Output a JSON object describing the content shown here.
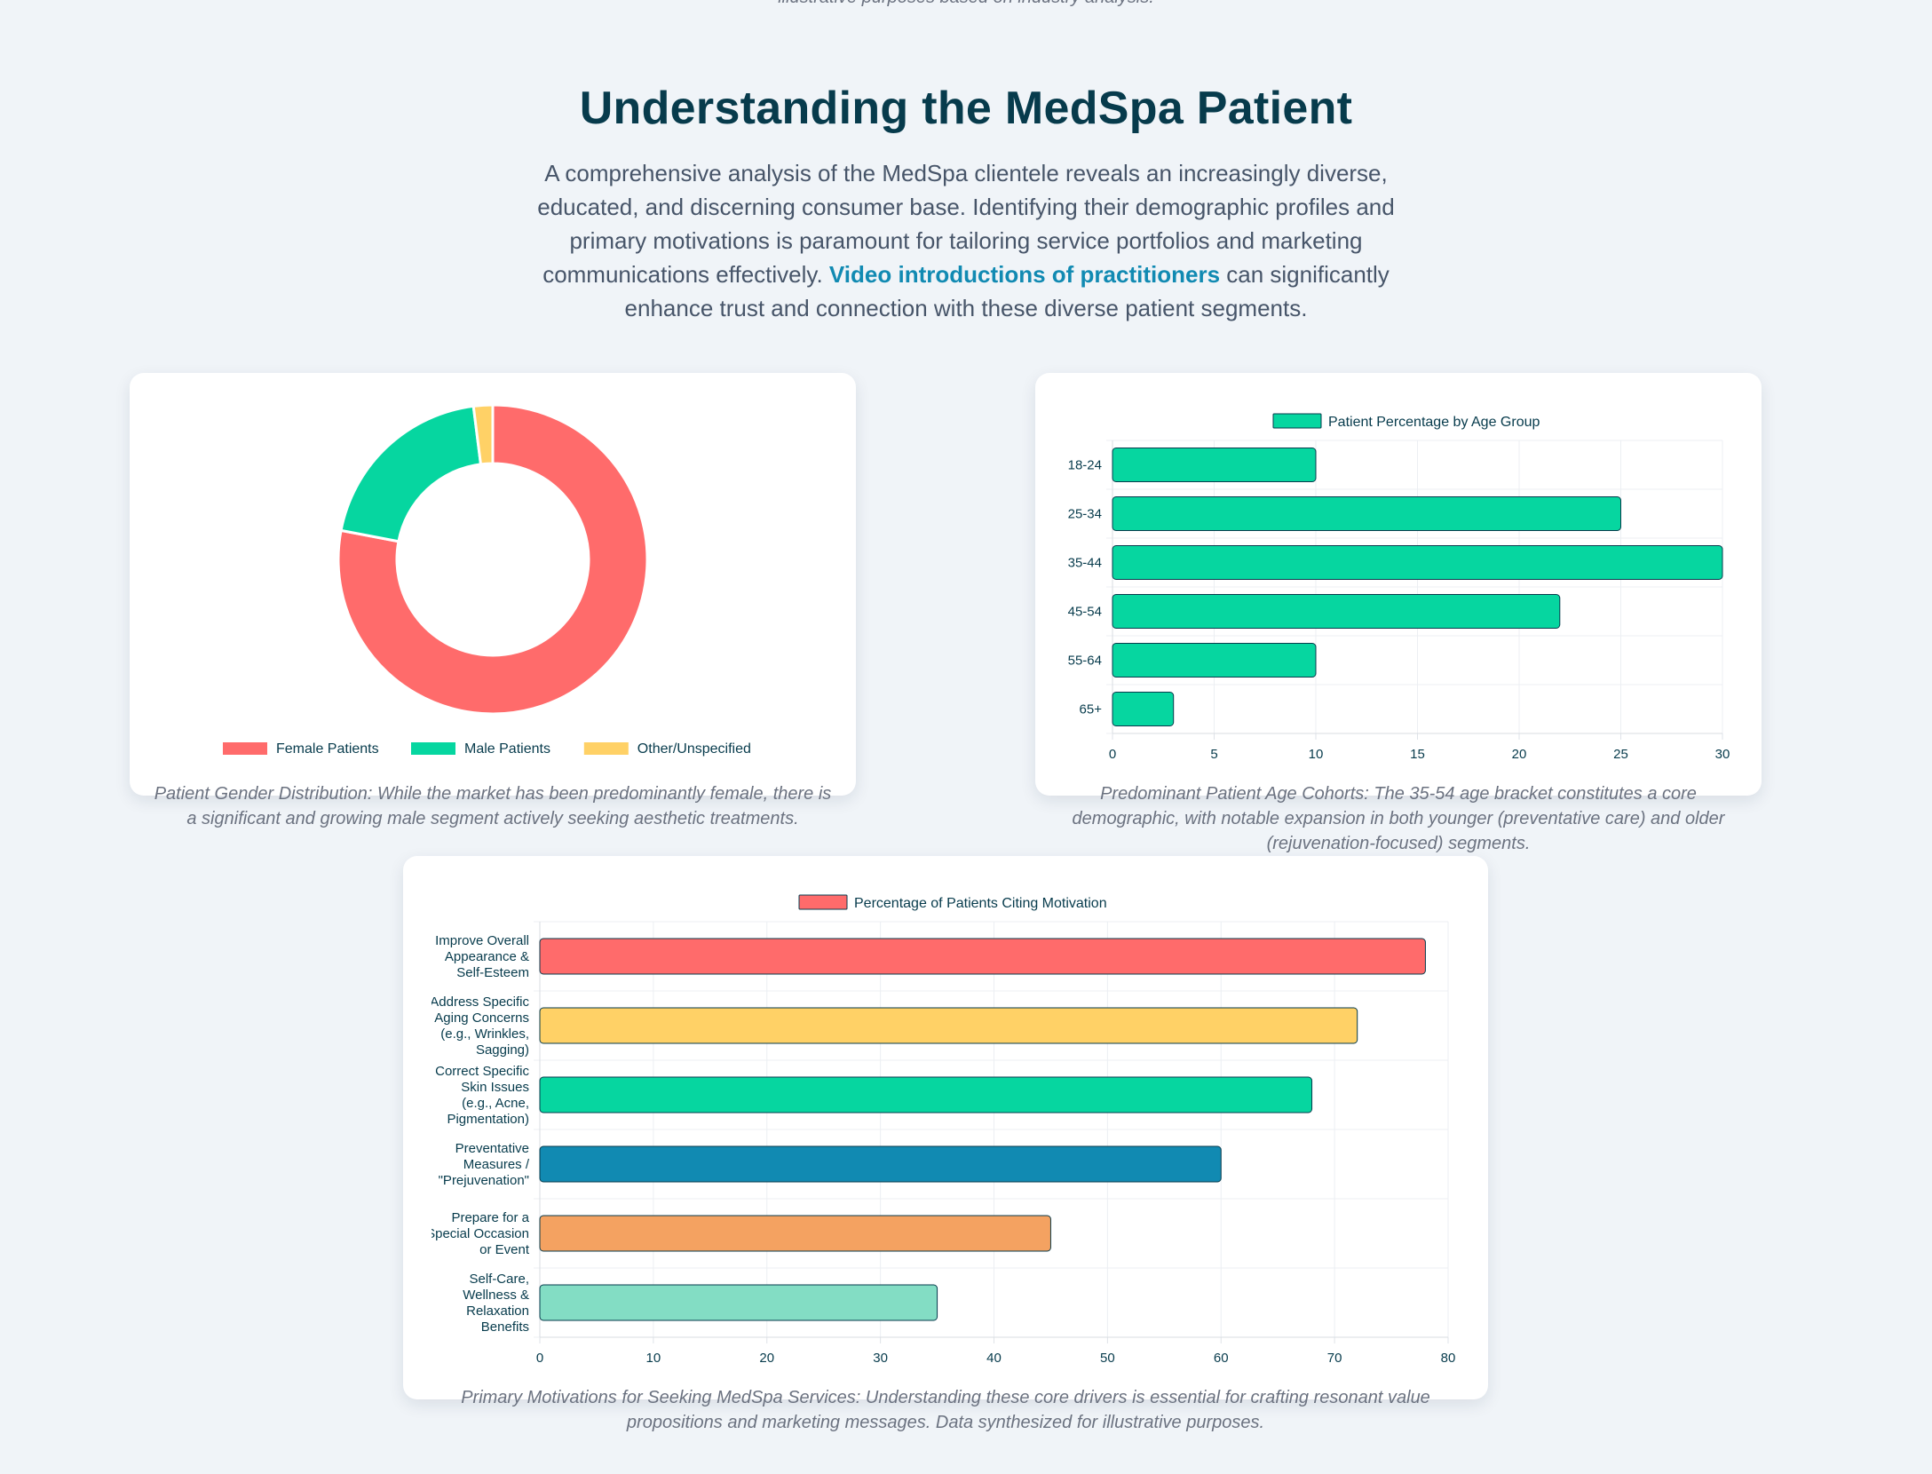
{
  "top_note": "illustrative purposes based on industry analysis.",
  "section": {
    "title": "Understanding the MedSpa Patient",
    "intro_before": "A comprehensive analysis of the MedSpa clientele reveals an increasingly diverse, educated, and discerning consumer base. Identifying their demographic profiles and primary motivations is paramount for tailoring service portfolios and marketing communications effectively. ",
    "intro_link": "Video introductions of practitioners",
    "intro_after": " can significantly enhance trust and connection with these diverse patient segments."
  },
  "captions": {
    "gender": "Patient Gender Distribution: While the market has been predominantly female, there is a significant and growing male segment actively seeking aesthetic treatments.",
    "age": "Predominant Patient Age Cohorts: The 35-54 age bracket constitutes a core demographic, with notable expansion in both younger (preventative care) and older (rejuvenation-focused) segments.",
    "motivation": "Primary Motivations for Seeking MedSpa Services: Understanding these core drivers is essential for crafting resonant value propositions and marketing messages. Data synthesized for illustrative purposes."
  },
  "chart_data": [
    {
      "id": "gender",
      "type": "pie",
      "donut": true,
      "categories": [
        "Female Patients",
        "Male Patients",
        "Other/Unspecified"
      ],
      "values": [
        78,
        20,
        2
      ],
      "colors": [
        "#ff6b6b",
        "#06d6a0",
        "#ffd166"
      ],
      "legend_position": "bottom"
    },
    {
      "id": "age",
      "type": "bar",
      "orientation": "horizontal",
      "series_name": "Patient Percentage by Age Group",
      "categories": [
        "18-24",
        "25-34",
        "35-44",
        "45-54",
        "55-64",
        "65+"
      ],
      "values": [
        10,
        25,
        30,
        22,
        10,
        3
      ],
      "color": "#06d6a0",
      "xlim": [
        0,
        30
      ],
      "xticks": [
        0,
        5,
        10,
        15,
        20,
        25,
        30
      ],
      "grid": true,
      "legend_position": "top"
    },
    {
      "id": "motivation",
      "type": "bar",
      "orientation": "horizontal",
      "series_name": "Percentage of Patients Citing Motivation",
      "categories": [
        [
          "Improve Overall",
          "Appearance &",
          "Self-Esteem"
        ],
        [
          "Address Specific",
          "Aging Concerns",
          "(e.g., Wrinkles,",
          "Sagging)"
        ],
        [
          "Correct Specific",
          "Skin Issues",
          "(e.g., Acne,",
          "Pigmentation)"
        ],
        [
          "Preventative",
          "Measures /",
          "\"Prejuvenation\""
        ],
        [
          "Prepare for a",
          "Special Occasion",
          "or Event"
        ],
        [
          "Self-Care,",
          "Wellness &",
          "Relaxation",
          "Benefits"
        ]
      ],
      "values": [
        78,
        72,
        68,
        60,
        45,
        35
      ],
      "colors": [
        "#ff6b6b",
        "#ffd166",
        "#06d6a0",
        "#118ab2",
        "#f4a261",
        "#83ddc4"
      ],
      "legend_color": "#ff6b6b",
      "xlim": [
        0,
        80
      ],
      "xticks": [
        0,
        10,
        20,
        30,
        40,
        50,
        60,
        70,
        80
      ],
      "grid": true,
      "legend_position": "top"
    }
  ]
}
